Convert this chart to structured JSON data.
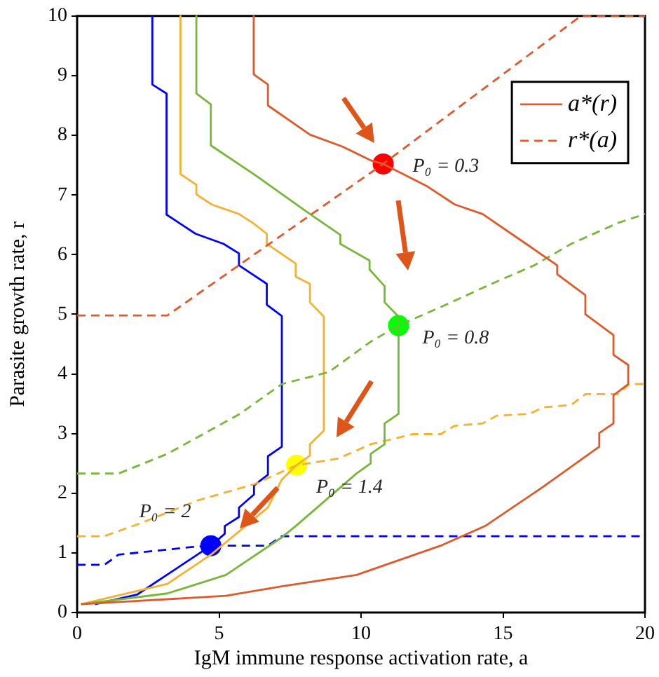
{
  "chart_data": {
    "type": "line",
    "xlabel": "IgM immune response activation rate, a",
    "ylabel": "Parasite growth rate, r",
    "xlim": [
      0,
      20
    ],
    "ylim": [
      0,
      10
    ],
    "xticks": [
      0,
      5,
      10,
      15,
      20
    ],
    "yticks": [
      0,
      1,
      2,
      3,
      4,
      5,
      6,
      7,
      8,
      9,
      10
    ],
    "grid": false,
    "legend": "top right",
    "marker": "none",
    "series": [
      {
        "name": "a*(r)",
        "color": "#e0592a",
        "line_style": "solid",
        "x": [
          6.22,
          6.22,
          6.72,
          6.72,
          8.2,
          9.35,
          10.34,
          10.78,
          12.31,
          13.3,
          14.28,
          15.6,
          16.91,
          16.91,
          17.9,
          17.9,
          18.89,
          18.89,
          19.41,
          19.41,
          18.89,
          18.89,
          18.39,
          18.39,
          16.42,
          14.37,
          12.8,
          9.84,
          7.21,
          5.24,
          1.62,
          0.14
        ],
        "values": [
          10,
          9.02,
          8.85,
          8.5,
          8.01,
          7.81,
          7.58,
          7.52,
          7.15,
          6.84,
          6.68,
          6.25,
          5.82,
          5.67,
          5.32,
          5.0,
          4.65,
          4.32,
          4.15,
          3.83,
          3.64,
          3.17,
          3.01,
          2.78,
          2.11,
          1.45,
          1.12,
          0.63,
          0.44,
          0.28,
          0.18,
          0.14
        ]
      },
      {
        "name": "r*(a)",
        "color": "#e0592a",
        "line_style": "dashed",
        "x": [
          0,
          3.18,
          10.78,
          17.74,
          20
        ],
        "values": [
          4.98,
          4.98,
          7.52,
          10,
          10
        ]
      },
      {
        "color": "#77b73a",
        "line_style": "solid",
        "x": [
          4.2,
          4.2,
          4.71,
          4.71,
          6.22,
          8.2,
          9.27,
          9.27,
          10.3,
          10.3,
          10.83,
          10.83,
          11.32,
          11.32,
          10.83,
          10.83,
          10.34,
          10.34,
          9.84,
          7.7,
          7.21,
          5.24,
          3.18,
          0.14
        ],
        "values": [
          10,
          8.7,
          8.52,
          7.83,
          7.35,
          6.68,
          6.33,
          6.18,
          5.9,
          5.75,
          5.47,
          5.2,
          4.96,
          3.33,
          3.17,
          2.82,
          2.66,
          2.5,
          2.33,
          1.45,
          1.26,
          0.63,
          0.32,
          0.14
        ]
      },
      {
        "color": "#77b73a",
        "line_style": "dashed",
        "x": [
          0,
          1.46,
          3.18,
          5.73,
          7.21,
          8.86,
          10.34,
          11.32,
          12.8,
          14.6,
          16.1,
          17.4,
          19.05,
          20
        ],
        "values": [
          2.33,
          2.33,
          2.66,
          3.33,
          3.83,
          4.03,
          4.54,
          4.81,
          5.12,
          5.51,
          5.82,
          6.18,
          6.53,
          6.68
        ]
      },
      {
        "color": "#f5b130",
        "line_style": "solid",
        "x": [
          3.64,
          3.64,
          4.2,
          4.2,
          4.74,
          5.7,
          6.19,
          6.68,
          6.68,
          7.7,
          7.7,
          8.2,
          8.2,
          8.69,
          8.69,
          8.2,
          8.2,
          7.73,
          7.21,
          6.72,
          4.74,
          3.18,
          0.14
        ],
        "values": [
          10,
          7.35,
          7.17,
          7.01,
          6.84,
          6.68,
          6.53,
          6.35,
          6.18,
          5.85,
          5.63,
          5.51,
          5.2,
          4.96,
          3.05,
          2.82,
          2.63,
          2.47,
          2.23,
          1.76,
          0.98,
          0.48,
          0.14
        ]
      },
      {
        "color": "#f5b130",
        "line_style": "dashed",
        "x": [
          0,
          0.96,
          2.2,
          4.25,
          6.23,
          7.73,
          9.19,
          10.34,
          11.82,
          12.8,
          13.3,
          14.28,
          14.78,
          15.93,
          16.42,
          17.4,
          17.9,
          19.05,
          19.46,
          20
        ],
        "values": [
          1.28,
          1.28,
          1.49,
          1.88,
          2.15,
          2.47,
          2.58,
          2.82,
          2.99,
          2.99,
          3.13,
          3.17,
          3.3,
          3.33,
          3.44,
          3.48,
          3.66,
          3.66,
          3.83,
          3.83
        ]
      },
      {
        "color": "#0000ff",
        "line_style": "solid",
        "x": [
          2.65,
          2.65,
          3.15,
          3.15,
          4.17,
          5.16,
          5.7,
          5.7,
          6.68,
          6.68,
          7.21,
          7.21,
          6.72,
          6.72,
          6.23,
          6.23,
          5.7,
          5.7,
          5.2,
          5.2,
          4.71,
          2.11,
          0.63
        ],
        "values": [
          10,
          8.85,
          8.7,
          6.67,
          6.35,
          6.18,
          6.02,
          5.82,
          5.51,
          5.16,
          4.97,
          2.78,
          2.62,
          2.31,
          2.13,
          1.98,
          1.76,
          1.6,
          1.45,
          1.32,
          1.12,
          0.3,
          0.14
        ]
      },
      {
        "color": "#0000ff",
        "line_style": "dashed",
        "x": [
          0,
          0.96,
          1.46,
          4.08,
          4.71,
          6.72,
          7.21,
          20
        ],
        "values": [
          0.8,
          0.8,
          0.97,
          1.1,
          1.12,
          1.12,
          1.28,
          1.28
        ]
      },
      {
        "type": "scatter",
        "marker": "circle",
        "colors": [
          "#ff0000",
          "#00ff00",
          "#ffff00",
          "#0000ff"
        ],
        "x": [
          10.78,
          11.32,
          7.73,
          4.71
        ],
        "values": [
          7.52,
          4.81,
          2.47,
          1.12
        ]
      }
    ],
    "annotations": [
      {
        "text": "P₀ = 0.3",
        "x": 10.78,
        "y": 7.52
      },
      {
        "text": "P₀ = 0.8",
        "x": 11.32,
        "y": 4.81
      },
      {
        "text": "P₀ = 1.4",
        "x": 7.73,
        "y": 2.47
      },
      {
        "text": "P₀ = 2",
        "x": 4.71,
        "y": 1.12
      }
    ]
  }
}
